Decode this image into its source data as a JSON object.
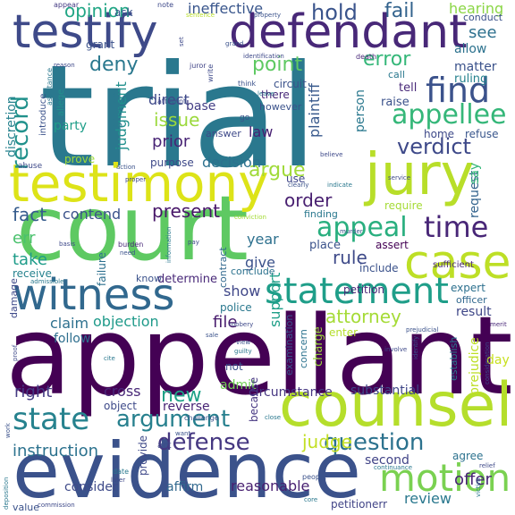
{
  "words": [
    {
      "text": "trial",
      "color": "#2a788e"
    },
    {
      "text": "appellant",
      "color": "#440154"
    },
    {
      "text": "court",
      "color": "#5ec962"
    },
    {
      "text": "evidence",
      "color": "#3b528b"
    },
    {
      "text": "counsel",
      "color": "#b5de2b"
    },
    {
      "text": "testimony",
      "color": "#dde318"
    },
    {
      "text": "testify",
      "color": "#3e4a89"
    },
    {
      "text": "defendant",
      "color": "#482878"
    },
    {
      "text": "jury",
      "color": "#b8de29"
    },
    {
      "text": "witness",
      "color": "#31688e"
    },
    {
      "text": "case",
      "color": "#bddf26"
    },
    {
      "text": "statement",
      "color": "#1f9e89"
    },
    {
      "text": "motion",
      "color": "#7ad151"
    },
    {
      "text": "appellee",
      "color": "#35b779"
    },
    {
      "text": "state",
      "color": "#26828e"
    },
    {
      "text": "find",
      "color": "#3b528b"
    },
    {
      "text": "verdict",
      "color": "#3e4989"
    },
    {
      "text": "record",
      "color": "#21918c"
    },
    {
      "text": "time",
      "color": "#482677"
    },
    {
      "text": "appeal",
      "color": "#29af7f"
    },
    {
      "text": "argue",
      "color": "#a0da39"
    },
    {
      "text": "question",
      "color": "#2c728e"
    },
    {
      "text": "argument",
      "color": "#27808e"
    },
    {
      "text": "defense",
      "color": "#453781"
    },
    {
      "text": "hold",
      "color": "#3a548c"
    },
    {
      "text": "fail",
      "color": "#33638d"
    },
    {
      "text": "error",
      "color": "#35b779"
    },
    {
      "text": "point",
      "color": "#5ec962"
    },
    {
      "text": "attorney",
      "color": "#a5db36"
    },
    {
      "text": "judge",
      "color": "#c2df23"
    },
    {
      "text": "deny",
      "color": "#2a788e"
    },
    {
      "text": "order",
      "color": "#481f70"
    },
    {
      "text": "rule",
      "color": "#3e4a89"
    },
    {
      "text": "fact",
      "color": "#365c8d"
    },
    {
      "text": "issue",
      "color": "#9bd93c"
    },
    {
      "text": "present",
      "color": "#481769"
    },
    {
      "text": "new",
      "color": "#1fa187"
    },
    {
      "text": "instruction",
      "color": "#2c728e"
    },
    {
      "text": "judgment",
      "color": "#21908d"
    },
    {
      "text": "plaintiff",
      "color": "#38598c"
    },
    {
      "text": "objection",
      "color": "#1f9a8a"
    },
    {
      "text": "claim",
      "color": "#2d708e"
    },
    {
      "text": "file",
      "color": "#481b6d"
    },
    {
      "text": "contend",
      "color": "#3b528b"
    },
    {
      "text": "err",
      "color": "#4ac16d"
    },
    {
      "text": "take",
      "color": "#1e9c89"
    },
    {
      "text": "right",
      "color": "#443a83"
    },
    {
      "text": "show",
      "color": "#3f4788"
    },
    {
      "text": "decision",
      "color": "#2c718e"
    },
    {
      "text": "support",
      "color": "#1f9f88"
    },
    {
      "text": "opinion",
      "color": "#21a685"
    },
    {
      "text": "ineffective",
      "color": "#39568c"
    },
    {
      "text": "see",
      "color": "#2d708e"
    },
    {
      "text": "matter",
      "color": "#3b528b"
    },
    {
      "text": "request",
      "color": "#33638d"
    },
    {
      "text": "result",
      "color": "#3f4788"
    },
    {
      "text": "say",
      "color": "#35b779"
    },
    {
      "text": "admit",
      "color": "#73d056"
    },
    {
      "text": "second",
      "color": "#414487"
    },
    {
      "text": "offer",
      "color": "#482475"
    },
    {
      "text": "affirm",
      "color": "#31688e"
    },
    {
      "text": "consider",
      "color": "#3e4a89"
    },
    {
      "text": "reasonable",
      "color": "#482071"
    },
    {
      "text": "review",
      "color": "#2a788e"
    },
    {
      "text": "substantial",
      "color": "#3f4788"
    },
    {
      "text": "circumstance",
      "color": "#453581"
    },
    {
      "text": "cross",
      "color": "#482878"
    },
    {
      "text": "follow",
      "color": "#2e6e8e"
    },
    {
      "text": "party",
      "color": "#1f9e89"
    },
    {
      "text": "prior",
      "color": "#482475"
    },
    {
      "text": "direct",
      "color": "#3e4989"
    },
    {
      "text": "law",
      "color": "#482173"
    },
    {
      "text": "give",
      "color": "#3b528b"
    },
    {
      "text": "year",
      "color": "#2d708e"
    },
    {
      "text": "hearing",
      "color": "#8bd646"
    },
    {
      "text": "allow",
      "color": "#2c728e"
    },
    {
      "text": "conduct",
      "color": "#3b528b"
    },
    {
      "text": "ruling",
      "color": "#26828e"
    },
    {
      "text": "tell",
      "color": "#482878"
    },
    {
      "text": "raise",
      "color": "#3b528b"
    },
    {
      "text": "home",
      "color": "#3e4989"
    },
    {
      "text": "refuse",
      "color": "#39568c"
    },
    {
      "text": "ground",
      "color": "#2a788e"
    },
    {
      "text": "base",
      "color": "#433e85"
    },
    {
      "text": "however",
      "color": "#3b528b"
    },
    {
      "text": "discretion",
      "color": "#26828e"
    },
    {
      "text": "ask",
      "color": "#3a548c"
    },
    {
      "text": "grant",
      "color": "#3b528b"
    },
    {
      "text": "prove",
      "color": "#a0da39"
    },
    {
      "text": "purpose",
      "color": "#3e4989"
    },
    {
      "text": "use",
      "color": "#3f4788"
    },
    {
      "text": "finding",
      "color": "#2a788e"
    },
    {
      "text": "require",
      "color": "#a5db36"
    },
    {
      "text": "place",
      "color": "#3b528b"
    },
    {
      "text": "assert",
      "color": "#440154"
    },
    {
      "text": "include",
      "color": "#3b528b"
    },
    {
      "text": "petition",
      "color": "#482677"
    },
    {
      "text": "expert",
      "color": "#2d708e"
    },
    {
      "text": "officer",
      "color": "#31688e"
    },
    {
      "text": "police",
      "color": "#2a788e"
    },
    {
      "text": "conclude",
      "color": "#2c728e"
    },
    {
      "text": "determine",
      "color": "#482878"
    },
    {
      "text": "know",
      "color": "#3b528b"
    },
    {
      "text": "receive",
      "color": "#26828e"
    },
    {
      "text": "damage",
      "color": "#3e4989"
    },
    {
      "text": "reverse",
      "color": "#482475"
    },
    {
      "text": "object",
      "color": "#3e4a89"
    },
    {
      "text": "examination",
      "color": "#39568c"
    },
    {
      "text": "concern",
      "color": "#2c728e"
    },
    {
      "text": "charge",
      "color": "#9bd93c"
    },
    {
      "text": "establish",
      "color": "#2a788e"
    },
    {
      "text": "day",
      "color": "#c8e020"
    },
    {
      "text": "prejudice",
      "color": "#bddf26"
    },
    {
      "text": "enter",
      "color": "#b5de2b"
    },
    {
      "text": "failure",
      "color": "#2d708e"
    },
    {
      "text": "contract",
      "color": "#31688e"
    },
    {
      "text": "person",
      "color": "#2a788e"
    },
    {
      "text": "circuit",
      "color": "#3b528b"
    },
    {
      "text": "there",
      "color": "#482878"
    },
    {
      "text": "answer",
      "color": "#3e4989"
    },
    {
      "text": "because",
      "color": "#453581"
    },
    {
      "text": "not",
      "color": "#3b528b"
    },
    {
      "text": "agree",
      "color": "#2c728e"
    },
    {
      "text": "provide",
      "color": "#3e4989"
    },
    {
      "text": "petitionerr",
      "color": "#414487"
    },
    {
      "text": "value",
      "color": "#3b528b"
    },
    {
      "text": "call",
      "color": "#2a788e"
    },
    {
      "text": "sufficient",
      "color": "#482878"
    },
    {
      "text": "attempt",
      "color": "#3e4989"
    },
    {
      "text": "allege",
      "color": "#21918c"
    },
    {
      "text": "introduce",
      "color": "#3b528b"
    },
    {
      "text": "assistance",
      "color": "#2a788e"
    },
    {
      "text": "abuse",
      "color": "#3e4989"
    },
    {
      "text": "appear",
      "color": "#443a83"
    },
    {
      "text": "note",
      "color": "#3e4989"
    },
    {
      "text": "sentence",
      "color": "#b8de29"
    },
    {
      "text": "property",
      "color": "#3b528b"
    },
    {
      "text": "identification",
      "color": "#3e4989"
    },
    {
      "text": "juror",
      "color": "#414487"
    },
    {
      "text": "write",
      "color": "#3e4989"
    },
    {
      "text": "death",
      "color": "#482878"
    },
    {
      "text": "think",
      "color": "#3b528b"
    },
    {
      "text": "leave",
      "color": "#2a788e"
    },
    {
      "text": "reason",
      "color": "#3e4989"
    },
    {
      "text": "go",
      "color": "#3b528b"
    },
    {
      "text": "believe",
      "color": "#3e4989"
    },
    {
      "text": "clearly",
      "color": "#3b528b"
    },
    {
      "text": "indicate",
      "color": "#2a788e"
    },
    {
      "text": "service",
      "color": "#3e4989"
    },
    {
      "text": "conviction",
      "color": "#a5db36"
    },
    {
      "text": "murder",
      "color": "#3b528b"
    },
    {
      "text": "pay",
      "color": "#3e4989"
    },
    {
      "text": "information",
      "color": "#2a788e"
    },
    {
      "text": "burden",
      "color": "#482878"
    },
    {
      "text": "need",
      "color": "#3b528b"
    },
    {
      "text": "basis",
      "color": "#3e4989"
    },
    {
      "text": "admissible",
      "color": "#2a788e"
    },
    {
      "text": "robbery",
      "color": "#3e4989"
    },
    {
      "text": "view",
      "color": "#3b528b"
    },
    {
      "text": "guilty",
      "color": "#2a788e"
    },
    {
      "text": "involve",
      "color": "#3e4989"
    },
    {
      "text": "identify",
      "color": "#3b528b"
    },
    {
      "text": "merit",
      "color": "#482878"
    },
    {
      "text": "consideration",
      "color": "#3e4989"
    },
    {
      "text": "challenge",
      "color": "#3b528b"
    },
    {
      "text": "close",
      "color": "#2a788e"
    },
    {
      "text": "relief",
      "color": "#3e4989"
    },
    {
      "text": "people",
      "color": "#3b528b"
    },
    {
      "text": "continuance",
      "color": "#2a788e"
    },
    {
      "text": "act",
      "color": "#3e4989"
    },
    {
      "text": "want",
      "color": "#3b528b"
    },
    {
      "text": "date",
      "color": "#2a788e"
    },
    {
      "text": "later",
      "color": "#3e4989"
    },
    {
      "text": "work",
      "color": "#3b528b"
    },
    {
      "text": "deposition",
      "color": "#2a788e"
    },
    {
      "text": "commission",
      "color": "#3e4989"
    },
    {
      "text": "sale",
      "color": "#3b528b"
    },
    {
      "text": "cite",
      "color": "#2a788e"
    },
    {
      "text": "proof",
      "color": "#3e4989"
    },
    {
      "text": "prejudicial",
      "color": "#3b528b"
    },
    {
      "text": "victim",
      "color": "#2a788e"
    },
    {
      "text": "proper",
      "color": "#3e4989"
    },
    {
      "text": "action",
      "color": "#3b528b"
    },
    {
      "text": "set",
      "color": "#3e4989"
    },
    {
      "text": "grand",
      "color": "#3b528b"
    },
    {
      "text": "core",
      "color": "#2a788e"
    }
  ]
}
